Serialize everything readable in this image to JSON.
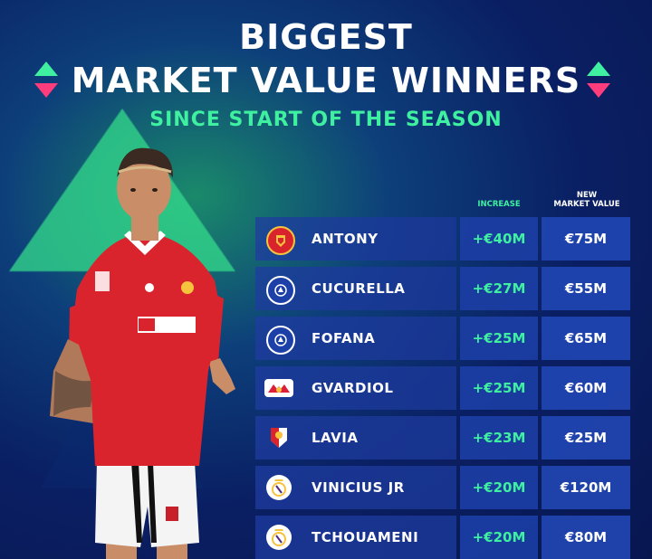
{
  "header": {
    "title_line1": "BIGGEST",
    "title_line2": "MARKET VALUE WINNERS",
    "subtitle": "SINCE START OF THE SEASON"
  },
  "columns": {
    "increase": "INCREASE",
    "new_market_value_line1": "NEW",
    "new_market_value_line2": "MARKET VALUE"
  },
  "colors": {
    "accent_green": "#3ef0a0",
    "accent_pink": "#ff3c7c",
    "background": "#0a1f63"
  },
  "players": [
    {
      "name": "ANTONY",
      "increase": "+€40M",
      "value": "€75M",
      "club_icon": "manchester-united-crest-icon"
    },
    {
      "name": "CUCURELLA",
      "increase": "+€27M",
      "value": "€55M",
      "club_icon": "chelsea-crest-icon"
    },
    {
      "name": "FOFANA",
      "increase": "+€25M",
      "value": "€65M",
      "club_icon": "chelsea-crest-icon"
    },
    {
      "name": "GVARDIOL",
      "increase": "+€25M",
      "value": "€60M",
      "club_icon": "rb-leipzig-crest-icon"
    },
    {
      "name": "LAVIA",
      "increase": "+€23M",
      "value": "€25M",
      "club_icon": "southampton-crest-icon"
    },
    {
      "name": "VINICIUS JR",
      "increase": "+€20M",
      "value": "€120M",
      "club_icon": "real-madrid-crest-icon"
    },
    {
      "name": "TCHOUAMENI",
      "increase": "+€20M",
      "value": "€80M",
      "club_icon": "real-madrid-crest-icon"
    }
  ]
}
